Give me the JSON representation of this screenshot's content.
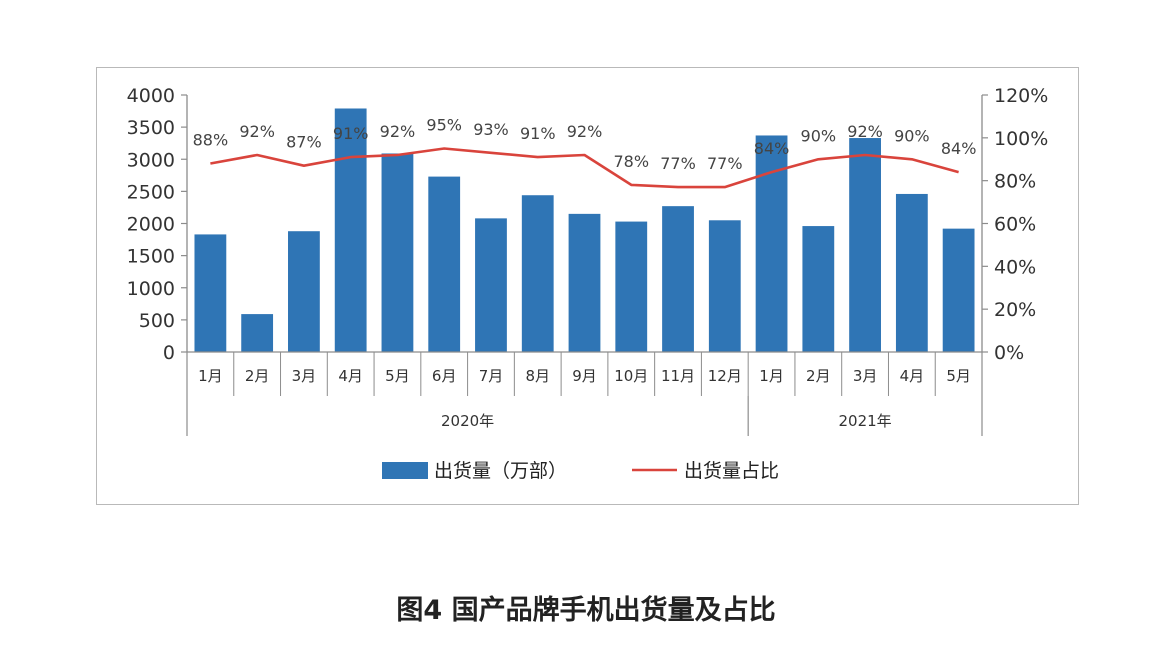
{
  "caption": "图4 国产品牌手机出货量及占比",
  "colors": {
    "bar": "#2f75b5",
    "line": "#d9443c",
    "axis": "#8c8c8c"
  },
  "chart_data": {
    "type": "bar",
    "title": "",
    "categories": [
      "1月",
      "2月",
      "3月",
      "4月",
      "5月",
      "6月",
      "7月",
      "8月",
      "9月",
      "10月",
      "11月",
      "12月",
      "1月",
      "2月",
      "3月",
      "4月",
      "5月"
    ],
    "groups": [
      {
        "label": "2020年",
        "count": 12
      },
      {
        "label": "2021年",
        "count": 5
      }
    ],
    "series": [
      {
        "name": "出货量（万部）",
        "type": "bar",
        "axis": "left",
        "values": [
          1830,
          590,
          1880,
          3790,
          3090,
          2730,
          2080,
          2440,
          2150,
          2030,
          2270,
          2050,
          3370,
          1960,
          3330,
          2460,
          1920
        ]
      },
      {
        "name": "出货量占比",
        "type": "line",
        "axis": "right",
        "values": [
          88,
          92,
          87,
          91,
          92,
          95,
          93,
          91,
          92,
          78,
          77,
          77,
          84,
          90,
          92,
          90,
          84
        ],
        "labels": [
          "88%",
          "92%",
          "87%",
          "91%",
          "92%",
          "95%",
          "93%",
          "91%",
          "92%",
          "78%",
          "77%",
          "77%",
          "84%",
          "90%",
          "92%",
          "90%",
          "84%"
        ]
      }
    ],
    "y_left": {
      "ylim": [
        0,
        4000
      ],
      "ticks": [
        "4000",
        "3500",
        "3000",
        "2500",
        "2000",
        "1500",
        "1000",
        "500",
        "0"
      ]
    },
    "y_right": {
      "ylim": [
        0,
        120
      ],
      "ticks": [
        "120%",
        "100%",
        "80%",
        "60%",
        "40%",
        "20%",
        "0%"
      ]
    },
    "legend": {
      "placement": "bottom-center"
    },
    "grid": false
  }
}
